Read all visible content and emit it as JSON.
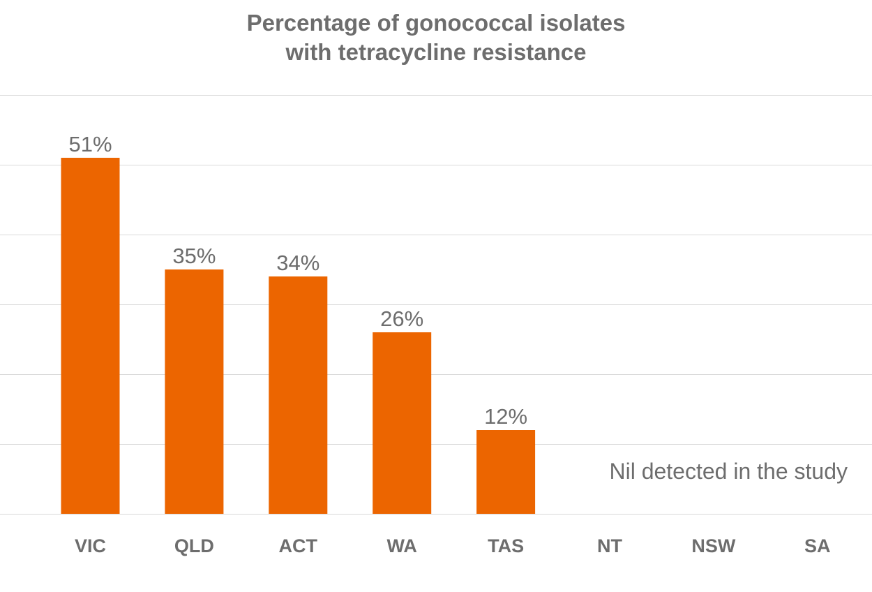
{
  "chart_data": {
    "type": "bar",
    "title": [
      "Percentage of gonococcal isolates",
      "with tetracycline resistance"
    ],
    "xlabel": "",
    "ylabel": "",
    "categories": [
      "VIC",
      "QLD",
      "ACT",
      "WA",
      "TAS",
      "NT",
      "NSW",
      "SA"
    ],
    "values": [
      51,
      35,
      34,
      26,
      12,
      null,
      null,
      null
    ],
    "data_labels": [
      "51%",
      "35%",
      "34%",
      "26%",
      "12%",
      "",
      "",
      ""
    ],
    "ylim": [
      0,
      60
    ],
    "gridlines": [
      0,
      10,
      20,
      30,
      40,
      50,
      60
    ],
    "grid": true,
    "bar_color": "#ec6500",
    "annotation": "Nil detected in the study"
  }
}
